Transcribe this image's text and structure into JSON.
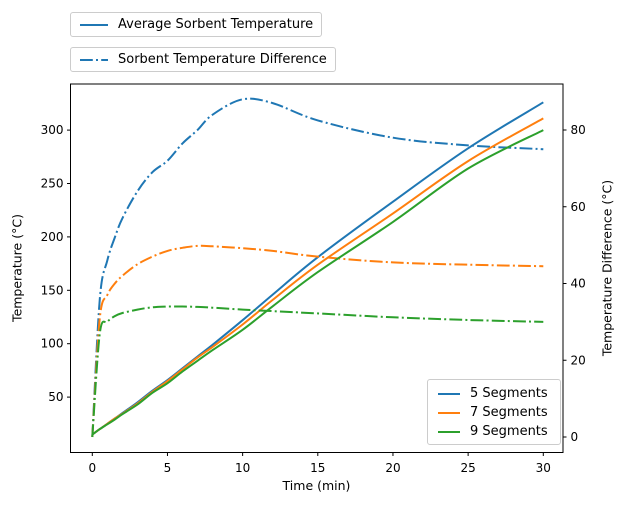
{
  "figure": {
    "background_color": "#ffffff"
  },
  "legend_top": {
    "items": [
      {
        "label": "Average Sorbent Temperature",
        "line_style": "solid",
        "color": "#1f77b4"
      },
      {
        "label": "Sorbent Temperature Difference",
        "line_style": "dashdot",
        "color": "#1f77b4"
      }
    ]
  },
  "legend_series": {
    "items": [
      {
        "label": "5 Segments",
        "color": "#1f77b4"
      },
      {
        "label": "7 Segments",
        "color": "#ff7f0e"
      },
      {
        "label": "9 Segments",
        "color": "#2ca02c"
      }
    ]
  },
  "chart_data": {
    "type": "line",
    "title": "",
    "xlabel": "Time (min)",
    "ylabel_left": "Temperature (°C)",
    "ylabel_right": "Temperature Difference (°C)",
    "x_ticks": [
      0,
      5,
      10,
      15,
      20,
      25,
      30
    ],
    "y_ticks_left": [
      50,
      100,
      150,
      200,
      250,
      300
    ],
    "y_ticks_right": [
      0,
      20,
      40,
      60,
      80
    ],
    "xlim": [
      -1.45,
      31.3
    ],
    "ylim_left": [
      -2.3,
      343
    ],
    "ylim_right": [
      -4.0,
      91.8
    ],
    "grid": false,
    "legend_positions": {
      "top": "upper left (outside axes)",
      "series": "lower right"
    },
    "line_style_avg_temperature": "solid",
    "line_style_temperature_difference": "dashdot",
    "time_min": [
      0,
      0.5,
      1,
      1.5,
      2,
      3,
      4,
      5,
      6,
      7,
      8,
      10,
      12,
      15,
      20,
      25,
      30
    ],
    "series": [
      {
        "name": "5 Segments",
        "color": "#1f77b4",
        "avg_sorbent_temperature_C": [
          15,
          20,
          25,
          30,
          35,
          45,
          56,
          66,
          77,
          88,
          99,
          122,
          146,
          181,
          233,
          283,
          326
        ],
        "sorbent_temperature_difference_C": [
          0,
          36,
          46,
          52,
          57,
          64,
          69,
          72,
          76.5,
          80,
          84,
          88,
          87,
          82.5,
          78,
          76,
          75
        ]
      },
      {
        "name": "7 Segments",
        "color": "#ff7f0e",
        "avg_sorbent_temperature_C": [
          15,
          20,
          25,
          30,
          34.5,
          44,
          55,
          65,
          76,
          87,
          97,
          118,
          141,
          174,
          222,
          271,
          311
        ],
        "sorbent_temperature_difference_C": [
          0,
          31,
          37,
          40,
          42,
          45,
          47,
          48.5,
          49.3,
          49.8,
          49.7,
          49.2,
          48.5,
          47,
          45.5,
          44.9,
          44.5
        ]
      },
      {
        "name": "9 Segments",
        "color": "#2ca02c",
        "avg_sorbent_temperature_C": [
          15,
          20,
          24.5,
          29,
          34,
          43,
          54,
          63,
          74,
          84,
          94,
          113,
          135,
          167,
          214,
          264,
          300
        ],
        "sorbent_temperature_difference_C": [
          0,
          27,
          30,
          31.5,
          32.3,
          33.2,
          33.8,
          34,
          34,
          33.9,
          33.7,
          33.2,
          32.8,
          32.2,
          31.2,
          30.5,
          30
        ]
      }
    ]
  }
}
